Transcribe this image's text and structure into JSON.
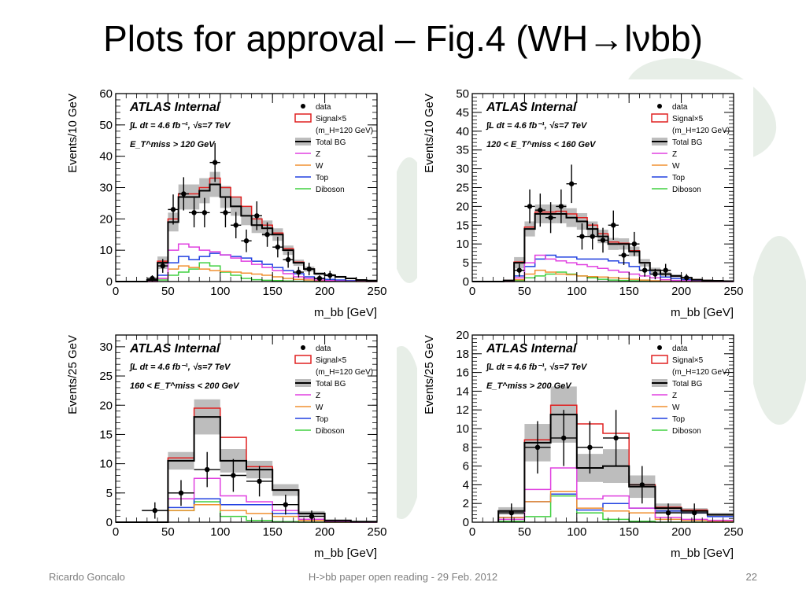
{
  "slide": {
    "title": "Plots for approval – Fig.4 (WH→lνbb)",
    "footer_left": "Ricardo Goncalo",
    "footer_center": "H->bb paper open reading - 29 Feb. 2012",
    "footer_right": "22"
  },
  "colors": {
    "total_bg": "#000000",
    "total_bg_band": "#bdbdbd",
    "signal": "#e02020",
    "Z": "#e040e0",
    "W": "#f09030",
    "Top": "#2040e0",
    "Diboson": "#40d040",
    "data": "#000000"
  },
  "chart_data": [
    {
      "type": "histogram",
      "xlabel": "m_bb [GeV]",
      "ylabel": "Events/10 GeV",
      "xlim": [
        0,
        250
      ],
      "ylim": [
        0,
        60
      ],
      "yticks": [
        0,
        10,
        20,
        30,
        40,
        50,
        60
      ],
      "xticks": [
        0,
        50,
        100,
        150,
        200,
        250
      ],
      "atlas_label": "ATLAS Internal",
      "lumi_label": "∫L dt = 4.6 fb⁻¹, √s=7 TeV",
      "selection_label": "E_T^miss > 120 GeV",
      "legend": [
        "data",
        "Signal×5",
        "(m_H=120 GeV)",
        "Total BG",
        "Z",
        "W",
        "Top",
        "Diboson"
      ],
      "bin_edges": [
        0,
        10,
        20,
        30,
        40,
        50,
        60,
        70,
        80,
        90,
        100,
        110,
        120,
        130,
        140,
        150,
        160,
        170,
        180,
        190,
        200,
        210,
        220,
        230,
        240,
        250
      ],
      "series": [
        {
          "name": "Total BG",
          "values": [
            0,
            0,
            0,
            0.5,
            6,
            19,
            27,
            27,
            29,
            31,
            27,
            24,
            21,
            18,
            17,
            15,
            10,
            6,
            4,
            2.5,
            2,
            1.5,
            1,
            0.5,
            0.3
          ]
        },
        {
          "name": "Signal×5",
          "values": [
            0,
            0,
            0,
            0.5,
            6.5,
            20,
            28,
            28,
            30,
            33,
            30,
            27,
            24,
            20,
            18,
            15.5,
            10.5,
            6.2,
            4,
            2.5,
            2,
            1.5,
            1,
            0.5,
            0.3
          ]
        },
        {
          "name": "Z",
          "values": [
            0,
            0,
            0,
            0,
            1,
            10,
            12,
            11,
            10,
            9.5,
            8.5,
            7.5,
            6.5,
            5.5,
            4.5,
            3.5,
            2.5,
            1.5,
            1,
            0.5,
            0.3,
            0.2,
            0.1,
            0.1,
            0
          ]
        },
        {
          "name": "W",
          "values": [
            0,
            0,
            0,
            0,
            1,
            4,
            5,
            4.5,
            4,
            3.5,
            3.2,
            3,
            2.7,
            2.4,
            2,
            1.5,
            1,
            0.7,
            0.5,
            0.3,
            0.2,
            0.1,
            0.1,
            0,
            0
          ]
        },
        {
          "name": "Top",
          "values": [
            0,
            0,
            0,
            0.3,
            2,
            6,
            8,
            7,
            8,
            9,
            8.5,
            8,
            7.5,
            6.5,
            5.5,
            4.5,
            3.5,
            2.5,
            1.5,
            1,
            0.7,
            0.5,
            0.3,
            0.2,
            0.1
          ]
        },
        {
          "name": "Diboson",
          "values": [
            0,
            0,
            0,
            0,
            0.5,
            2,
            3,
            4,
            6,
            5,
            3,
            2,
            1,
            0.6,
            0.4,
            0.3,
            0.2,
            0.1,
            0,
            0,
            0,
            0,
            0,
            0,
            0
          ]
        }
      ],
      "bg_band_halfwidth": [
        0,
        0,
        0,
        0.3,
        2,
        3,
        4,
        4,
        4,
        4,
        3.5,
        3,
        3,
        2.5,
        2.5,
        2,
        1.5,
        1,
        0.8,
        0.5,
        0.4,
        0.3,
        0.2,
        0.1,
        0.1
      ],
      "data": [
        {
          "x": 35,
          "y": 1,
          "err": 1
        },
        {
          "x": 45,
          "y": 5,
          "err": 2.2
        },
        {
          "x": 55,
          "y": 23,
          "err": 4.8
        },
        {
          "x": 65,
          "y": 28,
          "err": 5.3
        },
        {
          "x": 75,
          "y": 22,
          "err": 4.7
        },
        {
          "x": 85,
          "y": 22,
          "err": 4.7
        },
        {
          "x": 95,
          "y": 38,
          "err": 6.2
        },
        {
          "x": 105,
          "y": 22,
          "err": 4.7
        },
        {
          "x": 115,
          "y": 18,
          "err": 4.2
        },
        {
          "x": 125,
          "y": 13,
          "err": 3.6
        },
        {
          "x": 135,
          "y": 21,
          "err": 4.6
        },
        {
          "x": 145,
          "y": 15,
          "err": 3.9
        },
        {
          "x": 155,
          "y": 11,
          "err": 3.3
        },
        {
          "x": 165,
          "y": 7,
          "err": 2.6
        },
        {
          "x": 175,
          "y": 3,
          "err": 1.7
        },
        {
          "x": 185,
          "y": 4,
          "err": 2
        },
        {
          "x": 195,
          "y": 1,
          "err": 1
        },
        {
          "x": 205,
          "y": 2,
          "err": 1.4
        }
      ]
    },
    {
      "type": "histogram",
      "xlabel": "m_bb [GeV]",
      "ylabel": "Events/10 GeV",
      "xlim": [
        0,
        250
      ],
      "ylim": [
        0,
        50
      ],
      "yticks": [
        0,
        5,
        10,
        15,
        20,
        25,
        30,
        35,
        40,
        45,
        50
      ],
      "xticks": [
        0,
        50,
        100,
        150,
        200,
        250
      ],
      "atlas_label": "ATLAS Internal",
      "lumi_label": "∫L dt = 4.6 fb⁻¹, √s=7 TeV",
      "selection_label": "120 < E_T^miss < 160 GeV",
      "legend": [
        "data",
        "Signal×5",
        "(m_H=120 GeV)",
        "Total BG",
        "Z",
        "W",
        "Top",
        "Diboson"
      ],
      "bin_edges": [
        0,
        10,
        20,
        30,
        40,
        50,
        60,
        70,
        80,
        90,
        100,
        110,
        120,
        130,
        140,
        150,
        160,
        170,
        180,
        190,
        200,
        210,
        220,
        230,
        240,
        250
      ],
      "series": [
        {
          "name": "Total BG",
          "values": [
            0,
            0,
            0,
            0.3,
            5,
            14,
            18,
            18,
            18,
            17,
            16,
            14,
            12,
            10,
            10,
            8,
            5,
            3,
            2,
            1.5,
            1,
            0.5,
            0.3,
            0.2,
            0.1
          ]
        },
        {
          "name": "Signal×5",
          "values": [
            0,
            0,
            0,
            0.3,
            5.2,
            14.5,
            18.5,
            18.5,
            18.7,
            18,
            17,
            15,
            12.7,
            10.5,
            10.2,
            8.2,
            5,
            3,
            2,
            1.5,
            1,
            0.5,
            0.3,
            0.2,
            0.1
          ]
        },
        {
          "name": "Z",
          "values": [
            0,
            0,
            0,
            0,
            1,
            5,
            7,
            6,
            5.5,
            5,
            4.5,
            4,
            3.5,
            3,
            2.5,
            2,
            1.5,
            1,
            0.5,
            0.3,
            0.2,
            0.1,
            0,
            0,
            0
          ]
        },
        {
          "name": "W",
          "values": [
            0,
            0,
            0,
            0,
            0.5,
            2,
            3,
            2.5,
            2,
            1.8,
            1.5,
            1.3,
            1.2,
            1,
            0.8,
            0.6,
            0.4,
            0.2,
            0.1,
            0,
            0,
            0,
            0,
            0,
            0
          ]
        },
        {
          "name": "Top",
          "values": [
            0,
            0,
            0,
            0.2,
            1.5,
            4,
            6,
            7,
            6.5,
            6.5,
            6,
            6,
            6,
            5.5,
            5,
            4,
            3,
            2,
            1.2,
            0.8,
            0.5,
            0.3,
            0.2,
            0.1,
            0
          ]
        },
        {
          "name": "Diboson",
          "values": [
            0,
            0,
            0,
            0,
            0.3,
            1,
            1.5,
            2,
            2.5,
            2,
            1.5,
            1,
            0.6,
            0.4,
            0.3,
            0.2,
            0.1,
            0,
            0,
            0,
            0,
            0,
            0,
            0,
            0
          ]
        }
      ],
      "bg_band_halfwidth": [
        0,
        0,
        0,
        0.2,
        1.5,
        2,
        2.5,
        2.5,
        2.5,
        2.5,
        2.2,
        2,
        1.8,
        1.6,
        1.5,
        1.3,
        1,
        0.7,
        0.5,
        0.4,
        0.3,
        0.2,
        0.1,
        0.1,
        0.1
      ],
      "data": [
        {
          "x": 45,
          "y": 3,
          "err": 1.7
        },
        {
          "x": 55,
          "y": 20,
          "err": 4.5
        },
        {
          "x": 65,
          "y": 19,
          "err": 4.4
        },
        {
          "x": 75,
          "y": 17,
          "err": 4.1
        },
        {
          "x": 85,
          "y": 20,
          "err": 4.5
        },
        {
          "x": 95,
          "y": 26,
          "err": 5.1
        },
        {
          "x": 105,
          "y": 12,
          "err": 3.5
        },
        {
          "x": 115,
          "y": 12,
          "err": 3.5
        },
        {
          "x": 125,
          "y": 11,
          "err": 3.3
        },
        {
          "x": 135,
          "y": 15,
          "err": 3.9
        },
        {
          "x": 145,
          "y": 7,
          "err": 2.6
        },
        {
          "x": 155,
          "y": 10,
          "err": 3.2
        },
        {
          "x": 165,
          "y": 3,
          "err": 1.7
        },
        {
          "x": 175,
          "y": 2,
          "err": 1.4
        },
        {
          "x": 185,
          "y": 3,
          "err": 1.7
        },
        {
          "x": 205,
          "y": 1,
          "err": 1
        }
      ]
    },
    {
      "type": "histogram",
      "xlabel": "m_bb [GeV]",
      "ylabel": "Events/25 GeV",
      "xlim": [
        0,
        250
      ],
      "ylim": [
        0,
        32
      ],
      "yticks": [
        0,
        5,
        10,
        15,
        20,
        25,
        30
      ],
      "xticks": [
        0,
        50,
        100,
        150,
        200,
        250
      ],
      "atlas_label": "ATLAS Internal",
      "lumi_label": "∫L dt = 4.6 fb⁻¹, √s=7 TeV",
      "selection_label": "160 < E_T^miss < 200 GeV",
      "legend": [
        "data",
        "Signal×5",
        "(m_H=120 GeV)",
        "Total BG",
        "Z",
        "W",
        "Top",
        "Diboson"
      ],
      "bin_edges": [
        0,
        25,
        50,
        75,
        100,
        125,
        150,
        175,
        200,
        225,
        250
      ],
      "series": [
        {
          "name": "Total BG",
          "values": [
            0,
            0,
            10.5,
            18,
            10.5,
            9,
            5.5,
            1.5,
            0.3,
            0.1
          ]
        },
        {
          "name": "Signal×5",
          "values": [
            0,
            0,
            11,
            19.5,
            14.5,
            9.5,
            5.5,
            1.5,
            0.3,
            0.1
          ]
        },
        {
          "name": "Z",
          "values": [
            0,
            0,
            4,
            7.5,
            4.5,
            3.5,
            2,
            0.5,
            0.1,
            0
          ]
        },
        {
          "name": "W",
          "values": [
            0,
            0,
            2,
            3,
            2,
            1.5,
            1,
            0.3,
            0,
            0
          ]
        },
        {
          "name": "Top",
          "values": [
            0,
            0,
            2.5,
            4,
            3,
            3,
            1.5,
            0.5,
            0.1,
            0
          ]
        },
        {
          "name": "Diboson",
          "values": [
            0,
            0,
            2,
            3.5,
            1,
            0.3,
            0.1,
            0,
            0,
            0
          ]
        }
      ],
      "bg_band_halfwidth": [
        0,
        0,
        1.5,
        3,
        2,
        1.5,
        1,
        0.4,
        0.1,
        0
      ],
      "data": [
        {
          "x": 37.5,
          "y": 2,
          "err": 1.4,
          "xerr": 12.5
        },
        {
          "x": 62.5,
          "y": 5,
          "err": 2.2,
          "xerr": 12.5
        },
        {
          "x": 87.5,
          "y": 9,
          "err": 3,
          "xerr": 12.5
        },
        {
          "x": 112.5,
          "y": 8,
          "err": 2.8,
          "xerr": 12.5
        },
        {
          "x": 137.5,
          "y": 7,
          "err": 2.6,
          "xerr": 12.5
        },
        {
          "x": 162.5,
          "y": 3,
          "err": 1.7,
          "xerr": 12.5
        },
        {
          "x": 187.5,
          "y": 1,
          "err": 1,
          "xerr": 12.5
        }
      ]
    },
    {
      "type": "histogram",
      "xlabel": "m_bb [GeV]",
      "ylabel": "Events/25 GeV",
      "xlim": [
        0,
        250
      ],
      "ylim": [
        0,
        20
      ],
      "yticks": [
        0,
        2,
        4,
        6,
        8,
        10,
        12,
        14,
        16,
        18,
        20
      ],
      "xticks": [
        0,
        50,
        100,
        150,
        200,
        250
      ],
      "atlas_label": "ATLAS Internal",
      "lumi_label": "∫L dt = 4.6 fb⁻¹, √s=7 TeV",
      "selection_label": "E_T^miss > 200 GeV",
      "legend": [
        "data",
        "Signal×5",
        "(m_H=120 GeV)",
        "Total BG",
        "Z",
        "W",
        "Top",
        "Diboson"
      ],
      "bin_edges": [
        25,
        50,
        75,
        100,
        125,
        150,
        175,
        200,
        225,
        250
      ],
      "series": [
        {
          "name": "Total BG",
          "values": [
            1.2,
            8.5,
            11.5,
            5.8,
            6,
            3.8,
            1.5,
            1.2,
            0.8
          ]
        },
        {
          "name": "Signal×5",
          "values": [
            1.2,
            8.8,
            12.5,
            10.5,
            9.5,
            4,
            1.6,
            1.3,
            0.8
          ]
        },
        {
          "name": "Z",
          "values": [
            0.3,
            3.5,
            5.8,
            2.5,
            2.8,
            1.5,
            0.5,
            0.3,
            0.2
          ]
        },
        {
          "name": "W",
          "values": [
            0.5,
            2.2,
            3.3,
            1.5,
            1.2,
            1,
            0.3,
            0.2,
            0.1
          ]
        },
        {
          "name": "Top",
          "values": [
            0.5,
            2.2,
            3,
            1.3,
            2,
            1.5,
            1.2,
            1,
            0.6
          ]
        },
        {
          "name": "Diboson",
          "values": [
            0.1,
            0.6,
            2.8,
            1,
            0.3,
            0.1,
            0,
            0,
            0
          ]
        }
      ],
      "bg_band_halfwidth": [
        0.4,
        2,
        3,
        1.5,
        1.8,
        1.2,
        0.5,
        0.3,
        0.2
      ],
      "data": [
        {
          "x": 37.5,
          "y": 1,
          "err": 1,
          "xerr": 12.5
        },
        {
          "x": 62.5,
          "y": 8,
          "err": 2.8,
          "xerr": 12.5
        },
        {
          "x": 87.5,
          "y": 9,
          "err": 3,
          "xerr": 12.5
        },
        {
          "x": 112.5,
          "y": 8,
          "err": 2.8,
          "xerr": 12.5
        },
        {
          "x": 137.5,
          "y": 9,
          "err": 3,
          "xerr": 12.5
        },
        {
          "x": 162.5,
          "y": 4,
          "err": 2,
          "xerr": 12.5
        },
        {
          "x": 187.5,
          "y": 1,
          "err": 1,
          "xerr": 12.5
        },
        {
          "x": 212.5,
          "y": 1,
          "err": 1,
          "xerr": 12.5
        }
      ]
    }
  ]
}
